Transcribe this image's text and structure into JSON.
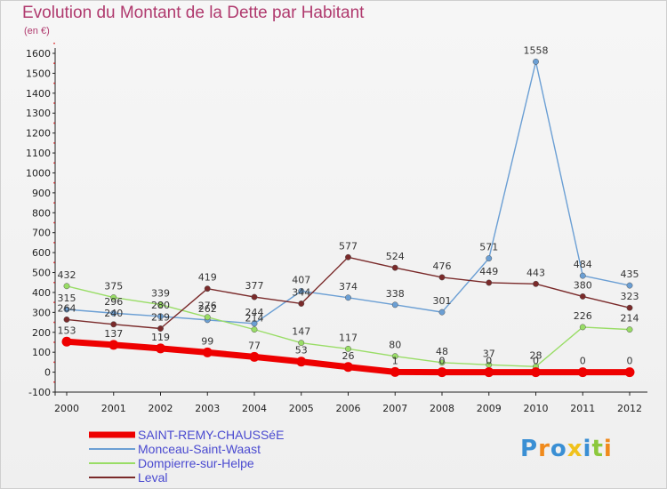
{
  "chart_data": {
    "type": "line",
    "title": "Evolution du Montant de la Dette par Habitant",
    "subtitle": "(en €)",
    "x": [
      "2000",
      "2001",
      "2002",
      "2003",
      "2004",
      "2005",
      "2006",
      "2007",
      "2008",
      "2009",
      "2010",
      "2011",
      "2012"
    ],
    "ylim": [
      -100,
      1600
    ],
    "yticks": [
      -100,
      0,
      100,
      200,
      300,
      400,
      500,
      600,
      700,
      800,
      900,
      1000,
      1100,
      1200,
      1300,
      1400,
      1500,
      1600
    ],
    "grid": false,
    "legend_position": "bottom-left",
    "series": [
      {
        "name": "SAINT-REMY-CHAUSSéE",
        "color": "#ee0000",
        "values": [
          153,
          137,
          119,
          99,
          77,
          53,
          26,
          1,
          0,
          0,
          0,
          0,
          0
        ],
        "labels": [
          "153",
          "137",
          "119",
          "99",
          "77",
          "53",
          "26",
          "1",
          "0",
          "0",
          "0",
          "0",
          "0"
        ]
      },
      {
        "name": "Monceau-Saint-Waast",
        "color": "#6b9fd4",
        "values": [
          315,
          296,
          280,
          262,
          244,
          407,
          374,
          338,
          301,
          571,
          1558,
          484,
          435
        ],
        "labels": [
          "315",
          "296",
          "280",
          "262",
          "244",
          "407",
          "374",
          "338",
          "301",
          "571",
          "1558",
          "484",
          "435"
        ]
      },
      {
        "name": "Dompierre-sur-Helpe",
        "color": "#99dd66",
        "values": [
          432,
          375,
          339,
          276,
          214,
          147,
          117,
          80,
          48,
          37,
          28,
          226,
          214
        ],
        "labels": [
          "432",
          "375",
          "339",
          "276",
          "214",
          "147",
          "117",
          "80",
          "48",
          "37",
          "28",
          "226",
          "214"
        ]
      },
      {
        "name": "Leval",
        "color": "#7a2a2a",
        "values": [
          264,
          240,
          219,
          419,
          377,
          344,
          577,
          524,
          476,
          449,
          443,
          380,
          323
        ],
        "labels": [
          "264",
          "240",
          "219",
          "419",
          "377",
          "344",
          "577",
          "524",
          "476",
          "449",
          "443",
          "380",
          "323"
        ]
      }
    ]
  },
  "branding": {
    "logo_text": "Proxiti",
    "letters": [
      "P",
      "r",
      "o",
      "x",
      "i",
      "t",
      "i"
    ],
    "letter_colors": [
      "#3a8fd4",
      "#f08a1c",
      "#3a8fd4",
      "#f0c21c",
      "#3a8fd4",
      "#8cc83c",
      "#f08a1c"
    ]
  }
}
